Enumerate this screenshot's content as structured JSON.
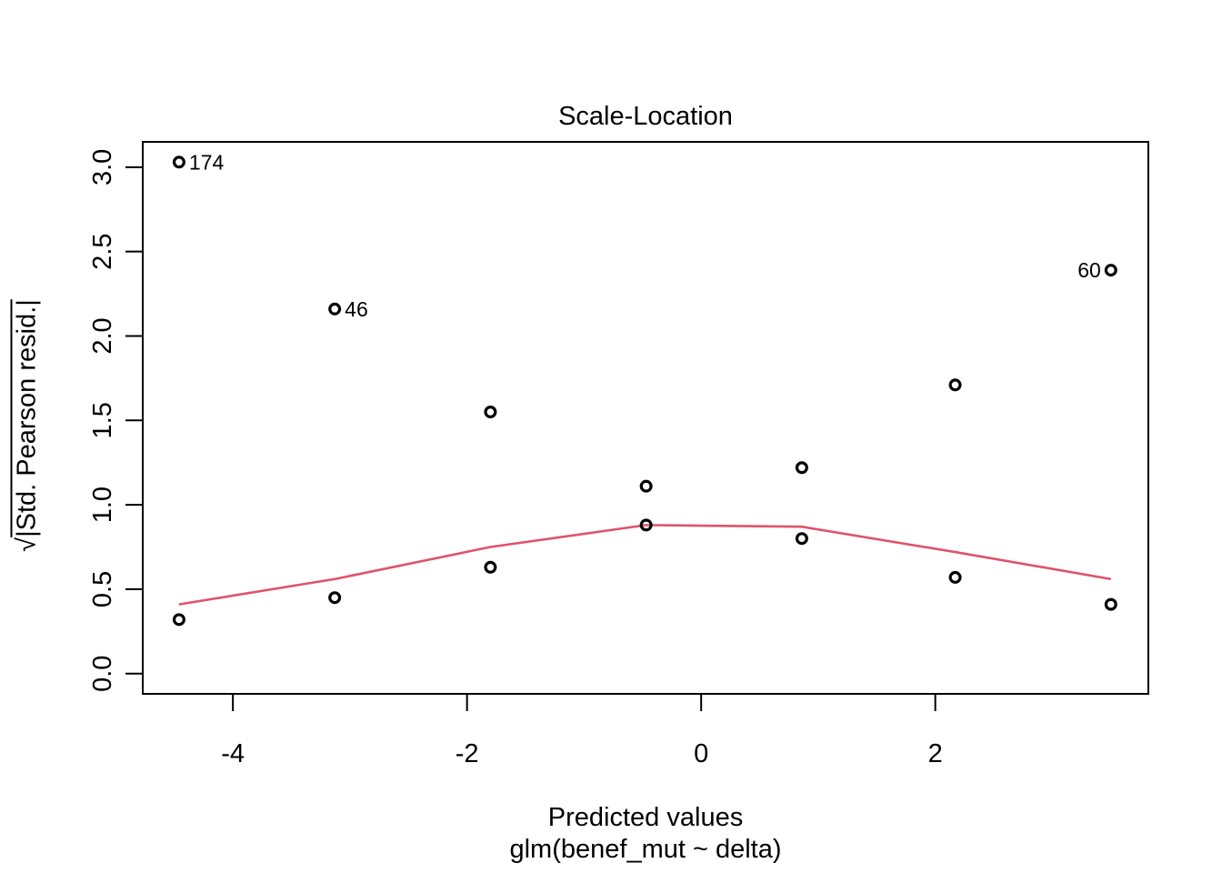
{
  "figure": {
    "title": "Scale-Location",
    "xlabel_line1": "Predicted values",
    "xlabel_line2": "glm(benef_mut ~ delta)",
    "ylabel_radical": "√",
    "ylabel_text": "|Std. Pearson resid.|"
  },
  "chart_data": {
    "type": "scatter",
    "title": "Scale-Location",
    "xlabel": "Predicted values",
    "model_caption": "glm(benef_mut ~ delta)",
    "ylabel": "sqrt(|Std. Pearson resid.|)",
    "xlim": [
      -4.77,
      3.82
    ],
    "ylim": [
      -0.12,
      3.15
    ],
    "grid": false,
    "legend_position": "none",
    "x_ticks": [
      {
        "value": -4,
        "label": "-4"
      },
      {
        "value": -2,
        "label": "-2"
      },
      {
        "value": 0,
        "label": "0"
      },
      {
        "value": 2,
        "label": "2"
      }
    ],
    "y_ticks": [
      {
        "value": 0.0,
        "label": "0.0"
      },
      {
        "value": 0.5,
        "label": "0.5"
      },
      {
        "value": 1.0,
        "label": "1.0"
      },
      {
        "value": 1.5,
        "label": "1.5"
      },
      {
        "value": 2.0,
        "label": "2.0"
      },
      {
        "value": 2.5,
        "label": "2.5"
      },
      {
        "value": 3.0,
        "label": "3.0"
      }
    ],
    "points": [
      {
        "x": -4.46,
        "y": 3.03,
        "label": "174",
        "label_side": "right"
      },
      {
        "x": -4.46,
        "y": 0.32
      },
      {
        "x": -3.13,
        "y": 2.16,
        "label": "46",
        "label_side": "right"
      },
      {
        "x": -3.13,
        "y": 0.45
      },
      {
        "x": -1.8,
        "y": 1.55
      },
      {
        "x": -1.8,
        "y": 0.63
      },
      {
        "x": -0.47,
        "y": 1.11
      },
      {
        "x": -0.47,
        "y": 0.88
      },
      {
        "x": 0.86,
        "y": 1.22
      },
      {
        "x": 0.86,
        "y": 0.8
      },
      {
        "x": 2.17,
        "y": 1.71
      },
      {
        "x": 2.17,
        "y": 0.57
      },
      {
        "x": 3.5,
        "y": 2.39,
        "label": "60",
        "label_side": "left"
      },
      {
        "x": 3.5,
        "y": 0.41
      }
    ],
    "smooth_line": {
      "x": [
        -4.46,
        -3.13,
        -1.8,
        -0.47,
        0.86,
        2.17,
        3.5
      ],
      "y": [
        0.41,
        0.56,
        0.75,
        0.88,
        0.87,
        0.72,
        0.56
      ]
    },
    "colors": {
      "point_stroke": "#000000",
      "smooth_line": "#DF536B",
      "axis": "#000000",
      "background": "#FFFFFF"
    }
  }
}
